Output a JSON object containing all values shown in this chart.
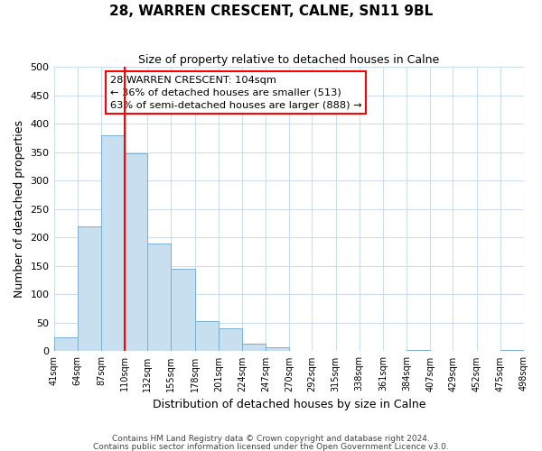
{
  "title": "28, WARREN CRESCENT, CALNE, SN11 9BL",
  "subtitle": "Size of property relative to detached houses in Calne",
  "xlabel": "Distribution of detached houses by size in Calne",
  "ylabel": "Number of detached properties",
  "bin_edges": [
    41,
    64,
    87,
    110,
    132,
    155,
    178,
    201,
    224,
    247,
    270,
    292,
    315,
    338,
    361,
    384,
    407,
    429,
    452,
    475,
    498
  ],
  "bar_heights": [
    25,
    220,
    380,
    348,
    190,
    145,
    53,
    40,
    13,
    7,
    0,
    0,
    0,
    0,
    0,
    2,
    0,
    0,
    0,
    2
  ],
  "bar_color": "#c8dff0",
  "bar_edgecolor": "#7aaecf",
  "vline_x": 110,
  "vline_color": "red",
  "annotation_title": "28 WARREN CRESCENT: 104sqm",
  "annotation_line1": "← 36% of detached houses are smaller (513)",
  "annotation_line2": "63% of semi-detached houses are larger (888) →",
  "ylim": [
    0,
    500
  ],
  "yticks": [
    0,
    50,
    100,
    150,
    200,
    250,
    300,
    350,
    400,
    450,
    500
  ],
  "tick_labels": [
    "41sqm",
    "64sqm",
    "87sqm",
    "110sqm",
    "132sqm",
    "155sqm",
    "178sqm",
    "201sqm",
    "224sqm",
    "247sqm",
    "270sqm",
    "292sqm",
    "315sqm",
    "338sqm",
    "361sqm",
    "384sqm",
    "407sqm",
    "429sqm",
    "452sqm",
    "475sqm",
    "498sqm"
  ],
  "footnote1": "Contains HM Land Registry data © Crown copyright and database right 2024.",
  "footnote2": "Contains public sector information licensed under the Open Government Licence v3.0.",
  "background_color": "#ffffff",
  "grid_color": "#ccddf0"
}
